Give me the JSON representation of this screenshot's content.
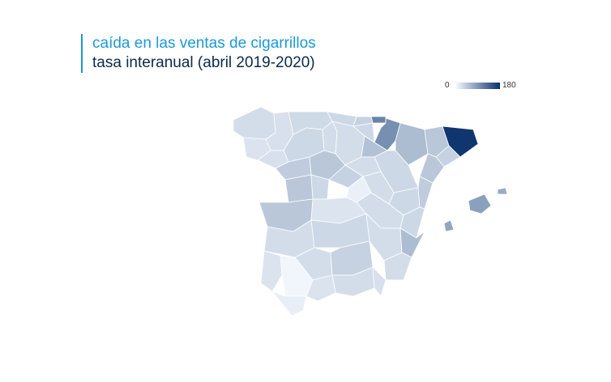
{
  "chart": {
    "title": "caída en las ventas de cigarrillos",
    "subtitle": "tasa interanual (abril 2019-2020)"
  },
  "legend": {
    "min": "0",
    "max": "180",
    "color_low": "#f4f9fe",
    "color_high": "#08306b"
  },
  "chart_data": {
    "type": "choropleth",
    "value_range": [
      0,
      180
    ],
    "regions": [
      {
        "name": "A Coruña",
        "value": 25
      },
      {
        "name": "Lugo",
        "value": 22
      },
      {
        "name": "Asturias",
        "value": 28
      },
      {
        "name": "Cantabria",
        "value": 30
      },
      {
        "name": "Bizkaia",
        "value": 35
      },
      {
        "name": "Gipuzkoa",
        "value": 105
      },
      {
        "name": "Navarra",
        "value": 95
      },
      {
        "name": "Huesca",
        "value": 55
      },
      {
        "name": "Lleida",
        "value": 45
      },
      {
        "name": "Girona",
        "value": 175
      },
      {
        "name": "Barcelona",
        "value": 35
      },
      {
        "name": "Tarragona",
        "value": 45
      },
      {
        "name": "Pontevedra",
        "value": 20
      },
      {
        "name": "Ourense",
        "value": 22
      },
      {
        "name": "León",
        "value": 30
      },
      {
        "name": "Palencia",
        "value": 25
      },
      {
        "name": "Burgos",
        "value": 25
      },
      {
        "name": "Álava",
        "value": 30
      },
      {
        "name": "La Rioja",
        "value": 50
      },
      {
        "name": "Zaragoza",
        "value": 30
      },
      {
        "name": "Zamora",
        "value": 40
      },
      {
        "name": "Valladolid",
        "value": 45
      },
      {
        "name": "Soria",
        "value": 25
      },
      {
        "name": "Teruel",
        "value": 30
      },
      {
        "name": "Castellón",
        "value": 40
      },
      {
        "name": "Salamanca",
        "value": 45
      },
      {
        "name": "Ávila",
        "value": 30
      },
      {
        "name": "Segovia",
        "value": 35
      },
      {
        "name": "Madrid",
        "value": 8
      },
      {
        "name": "Guadalajara",
        "value": 25
      },
      {
        "name": "Cuenca",
        "value": 25
      },
      {
        "name": "Valencia",
        "value": 30
      },
      {
        "name": "Cáceres",
        "value": 45
      },
      {
        "name": "Toledo",
        "value": 18
      },
      {
        "name": "Badajoz",
        "value": 25
      },
      {
        "name": "Ciudad Real",
        "value": 30
      },
      {
        "name": "Albacete",
        "value": 25
      },
      {
        "name": "Alicante",
        "value": 55
      },
      {
        "name": "Huelva",
        "value": 20
      },
      {
        "name": "Córdoba",
        "value": 25
      },
      {
        "name": "Jaén",
        "value": 35
      },
      {
        "name": "Murcia",
        "value": 25
      },
      {
        "name": "Sevilla",
        "value": 3
      },
      {
        "name": "Granada",
        "value": 25
      },
      {
        "name": "Almería",
        "value": 22
      },
      {
        "name": "Cádiz",
        "value": 10
      },
      {
        "name": "Málaga",
        "value": 20
      },
      {
        "name": "Mallorca",
        "value": 80
      },
      {
        "name": "Menorca",
        "value": 70
      },
      {
        "name": "Ibiza",
        "value": 75
      }
    ]
  }
}
